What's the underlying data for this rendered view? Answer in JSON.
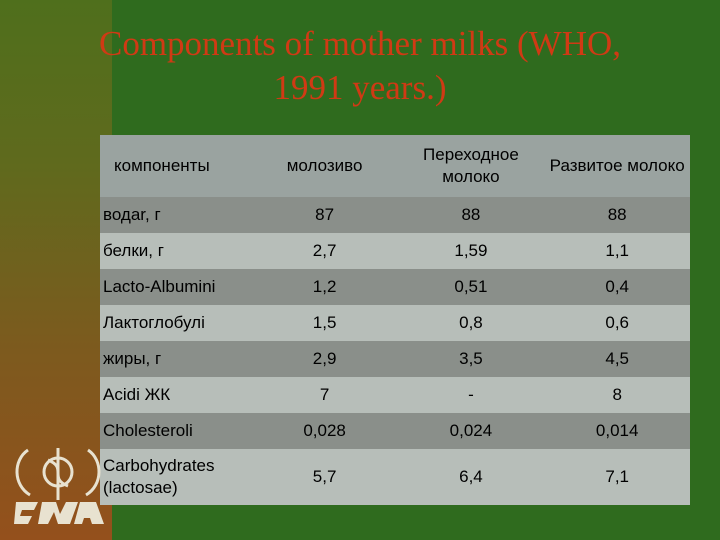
{
  "title_line1": "Components of mother milks (WHO,",
  "title_line2": "1991 years.)",
  "table": {
    "headers": [
      "компоненты",
      "молозиво",
      "Переходное молоко",
      "Развитое молоко"
    ],
    "rows": [
      {
        "label": "водаr, г",
        "values": [
          "87",
          "88",
          "88"
        ]
      },
      {
        "label": "белки, г",
        "values": [
          "2,7",
          "1,59",
          "1,1"
        ]
      },
      {
        "label": "Lacto-Albumini",
        "values": [
          "1,2",
          "0,51",
          "0,4"
        ]
      },
      {
        "label": "Лактоглобулі",
        "values": [
          "1,5",
          "0,8",
          "0,6"
        ]
      },
      {
        "label": "жиры, г",
        "values": [
          "2,9",
          "3,5",
          "4,5"
        ]
      },
      {
        "label": "Acidi ЖК",
        "values": [
          "7",
          "-",
          "8"
        ]
      },
      {
        "label": "Cholesteroli",
        "values": [
          "0,028",
          "0,024",
          "0,014"
        ]
      },
      {
        "label": "Carbohydrates (lactosae)",
        "values": [
          "5,7",
          "6,4",
          "7,1"
        ]
      }
    ]
  },
  "colors": {
    "title": "#d03a14",
    "panel": "#2f6b1e",
    "row_dark": "#8a8f8a",
    "row_light": "#b7beb9"
  },
  "logo": {
    "icon": "emblem-icon"
  }
}
